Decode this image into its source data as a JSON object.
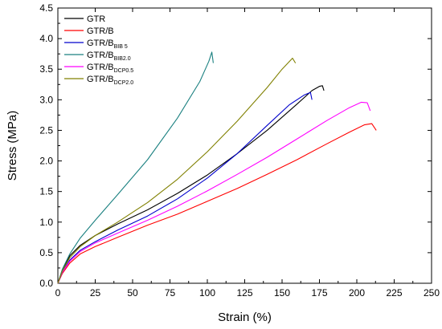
{
  "chart_data": {
    "type": "line",
    "xlabel": "Strain (%)",
    "ylabel": "Stress (MPa)",
    "xlim": [
      0,
      250
    ],
    "ylim": [
      0,
      4.5
    ],
    "xticks": [
      0,
      25,
      50,
      75,
      100,
      125,
      150,
      175,
      200,
      225,
      250
    ],
    "yticks": [
      0.0,
      0.5,
      1.0,
      1.5,
      2.0,
      2.5,
      3.0,
      3.5,
      4.0,
      4.5
    ],
    "ytick_labels": [
      "0.0",
      "0.5",
      "1.0",
      "1.5",
      "2.0",
      "2.5",
      "3.0",
      "3.5",
      "4.0",
      "4.5"
    ],
    "grid": false,
    "legend_position": "top-left",
    "series": [
      {
        "name": "GTR",
        "name_sub": "",
        "color": "#000000",
        "x": [
          0,
          3,
          8,
          15,
          25,
          40,
          60,
          80,
          100,
          120,
          140,
          160,
          170,
          175,
          177,
          178
        ],
        "y": [
          0,
          0.22,
          0.45,
          0.62,
          0.78,
          0.97,
          1.2,
          1.47,
          1.77,
          2.12,
          2.5,
          2.93,
          3.15,
          3.22,
          3.23,
          3.15
        ]
      },
      {
        "name": "GTR/B",
        "name_sub": "",
        "color": "#ff0000",
        "x": [
          0,
          3,
          8,
          15,
          25,
          40,
          60,
          80,
          100,
          120,
          140,
          160,
          180,
          195,
          205,
          210,
          213
        ],
        "y": [
          0,
          0.16,
          0.33,
          0.48,
          0.6,
          0.75,
          0.95,
          1.13,
          1.34,
          1.55,
          1.78,
          2.02,
          2.28,
          2.47,
          2.59,
          2.61,
          2.5
        ]
      },
      {
        "name": "GTR/B",
        "name_sub": "BIB 5",
        "color": "#0000cc",
        "x": [
          0,
          3,
          8,
          15,
          25,
          40,
          60,
          80,
          100,
          120,
          140,
          155,
          165,
          169,
          170
        ],
        "y": [
          0,
          0.18,
          0.38,
          0.54,
          0.68,
          0.87,
          1.1,
          1.38,
          1.72,
          2.12,
          2.58,
          2.92,
          3.08,
          3.12,
          3.0
        ]
      },
      {
        "name": "GTR/B",
        "name_sub": "BIB2.0",
        "color": "#1a8080",
        "x": [
          0,
          3,
          8,
          15,
          25,
          40,
          60,
          80,
          95,
          101,
          103,
          104
        ],
        "y": [
          0,
          0.23,
          0.48,
          0.74,
          1.03,
          1.45,
          2.02,
          2.7,
          3.3,
          3.63,
          3.78,
          3.6
        ]
      },
      {
        "name": "GTR/B",
        "name_sub": "DCP0.5",
        "color": "#ff00ff",
        "x": [
          0,
          3,
          8,
          15,
          25,
          40,
          60,
          80,
          100,
          120,
          140,
          160,
          180,
          195,
          203,
          207,
          209
        ],
        "y": [
          0,
          0.18,
          0.36,
          0.52,
          0.66,
          0.82,
          1.03,
          1.26,
          1.51,
          1.78,
          2.06,
          2.36,
          2.66,
          2.87,
          2.96,
          2.95,
          2.82
        ]
      },
      {
        "name": "GTR/B",
        "name_sub": "DCP2.0",
        "color": "#808000",
        "x": [
          0,
          3,
          8,
          15,
          25,
          40,
          60,
          80,
          100,
          120,
          140,
          150,
          157,
          159
        ],
        "y": [
          0,
          0.2,
          0.42,
          0.6,
          0.78,
          1.0,
          1.32,
          1.7,
          2.15,
          2.65,
          3.2,
          3.5,
          3.68,
          3.6
        ]
      }
    ]
  }
}
